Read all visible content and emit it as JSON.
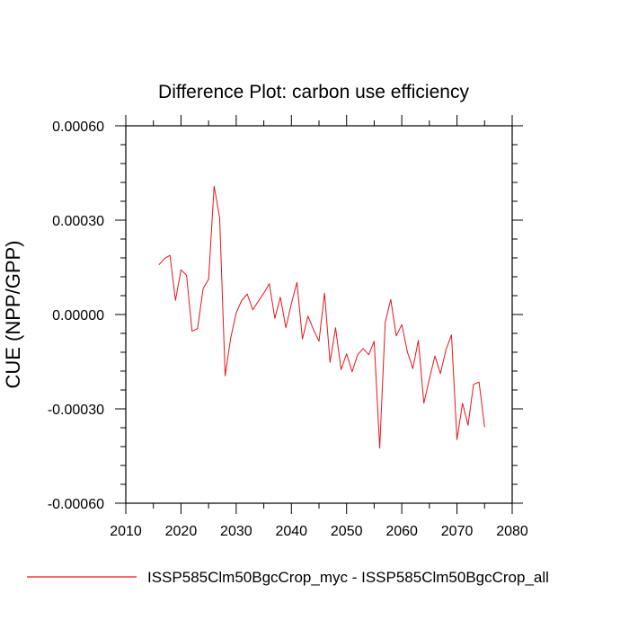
{
  "chart_data": {
    "type": "line",
    "title": "Difference Plot: carbon use efficiency",
    "xlabel": "",
    "ylabel": "CUE  (NPP/GPP)",
    "xlim": [
      2010,
      2080
    ],
    "ylim": [
      -0.0006,
      0.0006
    ],
    "x_ticks": [
      2010,
      2020,
      2030,
      2040,
      2050,
      2060,
      2070,
      2080
    ],
    "x_tick_labels": [
      "2010",
      "2020",
      "2030",
      "2040",
      "2050",
      "2060",
      "2070",
      "2080"
    ],
    "y_ticks": [
      0.0006,
      0.0003,
      0.0,
      -0.0003,
      -0.0006
    ],
    "y_tick_labels": [
      "0.00060",
      "0.00030",
      "0.00000",
      "-0.00030",
      "-0.00060"
    ],
    "grid": false,
    "legend_position": "bottom-left",
    "series": [
      {
        "name": "ISSP585Clm50BgcCrop_myc - ISSP585Clm50BgcCrop_all",
        "color": "#e8141c",
        "x": [
          2016,
          2017,
          2018,
          2019,
          2020,
          2021,
          2022,
          2023,
          2024,
          2025,
          2026,
          2027,
          2028,
          2029,
          2030,
          2031,
          2032,
          2033,
          2034,
          2035,
          2036,
          2037,
          2038,
          2039,
          2040,
          2041,
          2042,
          2043,
          2044,
          2045,
          2046,
          2047,
          2048,
          2049,
          2050,
          2051,
          2052,
          2053,
          2054,
          2055,
          2056,
          2057,
          2058,
          2059,
          2060,
          2061,
          2062,
          2063,
          2064,
          2065,
          2066,
          2067,
          2068,
          2069,
          2070,
          2071,
          2072,
          2073,
          2074,
          2075
        ],
        "values": [
          0.000158,
          0.000178,
          0.000188,
          4.5e-05,
          0.000142,
          0.000125,
          -5.3e-05,
          -4.5e-05,
          8.2e-05,
          0.000112,
          0.000408,
          0.000308,
          -0.000195,
          -7.5e-05,
          5e-06,
          4.5e-05,
          6.5e-05,
          1.5e-05,
          4.2e-05,
          6.8e-05,
          9.8e-05,
          -1.2e-05,
          5.5e-05,
          -4.2e-05,
          3.5e-05,
          0.000102,
          -7.8e-05,
          -5e-06,
          -4.8e-05,
          -8.5e-05,
          6.8e-05,
          -0.000152,
          -4.2e-05,
          -0.000175,
          -0.000125,
          -0.000182,
          -0.000128,
          -0.000108,
          -0.000128,
          -8.5e-05,
          -0.000425,
          -2.5e-05,
          4.8e-05,
          -6.8e-05,
          -3.2e-05,
          -0.000118,
          -0.000172,
          -8.2e-05,
          -0.000282,
          -0.000205,
          -0.000132,
          -0.000188,
          -0.000112,
          -6.5e-05,
          -0.000398,
          -0.000282,
          -0.000352,
          -0.000222,
          -0.000215,
          -0.000358
        ]
      }
    ]
  }
}
